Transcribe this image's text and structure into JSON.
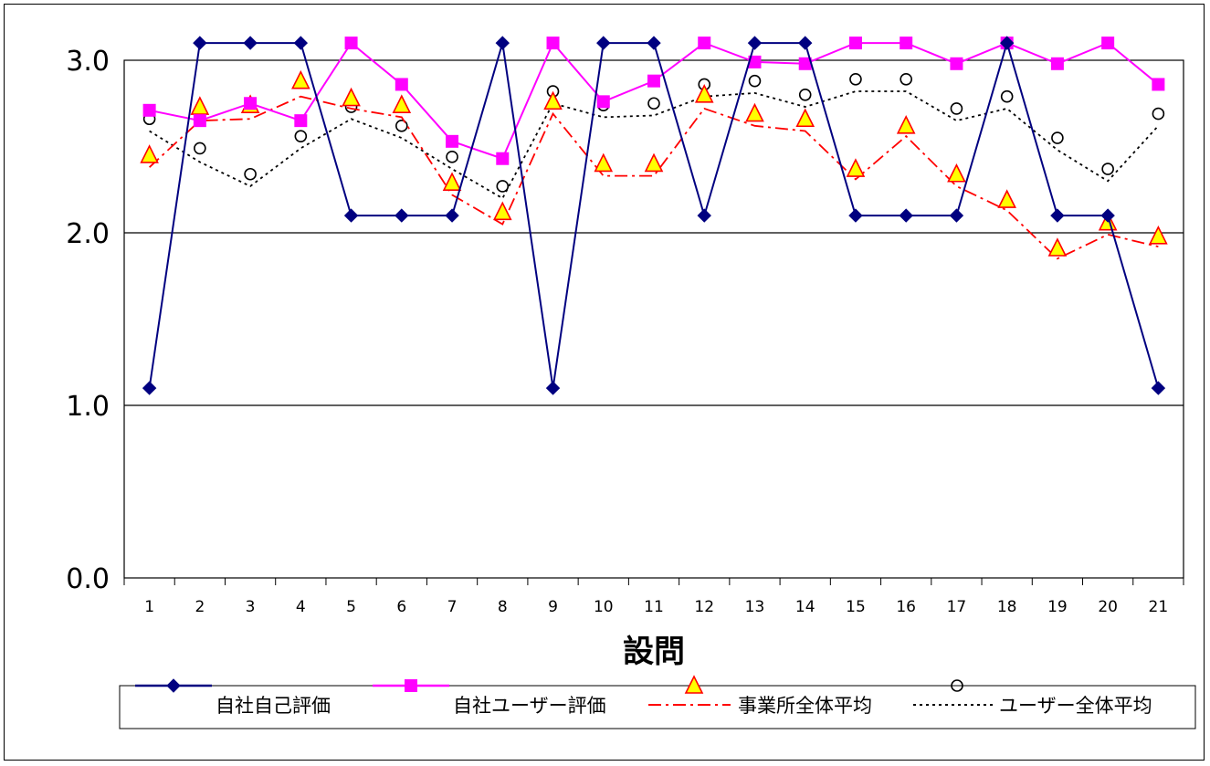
{
  "chart_data": {
    "type": "line",
    "title": "",
    "xlabel": "設問",
    "ylabel": "",
    "ylim": [
      0,
      3
    ],
    "y_ticks": [
      "0.0",
      "1.0",
      "2.0",
      "3.0"
    ],
    "y_tick_values": [
      0,
      1,
      2,
      3
    ],
    "grid": "horizontal major",
    "legend": "bottom",
    "categories": [
      "1",
      "2",
      "3",
      "4",
      "5",
      "6",
      "7",
      "8",
      "9",
      "10",
      "11",
      "12",
      "13",
      "14",
      "15",
      "16",
      "17",
      "18",
      "19",
      "20",
      "21"
    ],
    "series": [
      {
        "name": "自社自己評価",
        "color": "#000080",
        "line": "solid",
        "marker": "diamond",
        "values": [
          1.1,
          3.1,
          3.1,
          3.1,
          2.1,
          2.1,
          2.1,
          3.1,
          1.1,
          3.1,
          3.1,
          2.1,
          3.1,
          3.1,
          2.1,
          2.1,
          2.1,
          3.1,
          2.1,
          2.1,
          1.1
        ]
      },
      {
        "name": "自社ユーザー評価",
        "color": "#ff00ff",
        "line": "solid",
        "marker": "square",
        "values": [
          2.71,
          2.65,
          2.75,
          2.65,
          3.1,
          2.86,
          2.53,
          2.43,
          3.1,
          2.76,
          2.88,
          3.1,
          2.99,
          2.98,
          3.1,
          3.1,
          2.98,
          3.1,
          2.98,
          3.1,
          2.86
        ]
      },
      {
        "name": "事業所全体平均",
        "color": "#ff0000",
        "line": "dashdot",
        "marker": "triangle",
        "marker_fill": "#ffff00",
        "values": [
          2.45,
          2.73,
          2.74,
          2.88,
          2.78,
          2.74,
          2.29,
          2.12,
          2.76,
          2.4,
          2.4,
          2.8,
          2.69,
          2.66,
          2.37,
          2.62,
          2.34,
          2.19,
          1.91,
          2.06,
          1.98
        ],
        "trend": [
          2.38,
          2.65,
          2.66,
          2.79,
          2.72,
          2.67,
          2.22,
          2.05,
          2.69,
          2.33,
          2.33,
          2.72,
          2.62,
          2.59,
          2.31,
          2.56,
          2.27,
          2.13,
          1.85,
          1.99,
          1.92
        ]
      },
      {
        "name": "ユーザー全体平均",
        "color": "#000000",
        "line": "dotted",
        "marker": "circle",
        "values": [
          2.66,
          2.49,
          2.34,
          2.56,
          2.73,
          2.62,
          2.44,
          2.27,
          2.82,
          2.74,
          2.75,
          2.86,
          2.88,
          2.8,
          2.89,
          2.89,
          2.72,
          2.79,
          2.55,
          2.37,
          2.69
        ],
        "trend": [
          2.59,
          2.41,
          2.27,
          2.49,
          2.66,
          2.55,
          2.37,
          2.2,
          2.75,
          2.67,
          2.68,
          2.79,
          2.81,
          2.73,
          2.82,
          2.82,
          2.65,
          2.72,
          2.48,
          2.3,
          2.62
        ]
      }
    ]
  }
}
